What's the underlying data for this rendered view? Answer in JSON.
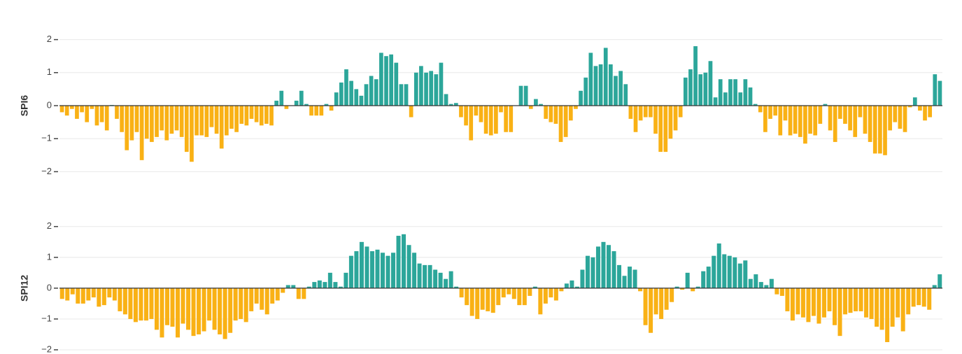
{
  "chart_data": [
    {
      "type": "bar",
      "ylabel": "SPI6",
      "positive_color": "#2ca69a",
      "negative_color": "#f9b115",
      "ylim": [
        -2.5,
        2.5
      ],
      "yticks": [
        {
          "value": -2,
          "label": "−2"
        },
        {
          "value": -1,
          "label": "−1"
        },
        0,
        1,
        2
      ],
      "grid": true,
      "values": [
        -0.2,
        -0.3,
        -0.1,
        -0.4,
        -0.2,
        -0.5,
        -0.1,
        -0.6,
        -0.5,
        -0.75,
        0.02,
        -0.4,
        -0.8,
        -1.35,
        -1.05,
        -0.8,
        -1.65,
        -1.0,
        -1.1,
        -0.95,
        -0.75,
        -1.05,
        -0.85,
        -0.75,
        -0.95,
        -1.4,
        -1.7,
        -0.9,
        -0.9,
        -0.95,
        -0.65,
        -0.85,
        -1.3,
        -0.9,
        -0.7,
        -0.8,
        -0.55,
        -0.6,
        -0.4,
        -0.5,
        -0.6,
        -0.55,
        -0.6,
        0.15,
        0.45,
        -0.1,
        0.0,
        0.15,
        0.45,
        0.05,
        -0.3,
        -0.3,
        -0.3,
        0.05,
        -0.15,
        0.4,
        0.7,
        1.1,
        0.75,
        0.5,
        0.3,
        0.65,
        0.9,
        0.8,
        1.6,
        1.5,
        1.55,
        1.3,
        0.65,
        0.65,
        -0.35,
        1.0,
        1.2,
        1.0,
        1.05,
        0.95,
        1.3,
        0.35,
        0.05,
        0.08,
        -0.35,
        -0.6,
        -1.05,
        -0.3,
        -0.5,
        -0.85,
        -0.9,
        -0.85,
        -0.2,
        -0.8,
        -0.8,
        0.0,
        0.6,
        0.6,
        -0.1,
        0.2,
        0.05,
        -0.4,
        -0.5,
        -0.55,
        -1.1,
        -0.95,
        -0.45,
        -0.1,
        0.45,
        0.85,
        1.6,
        1.2,
        1.25,
        1.75,
        1.25,
        0.9,
        1.05,
        0.65,
        -0.4,
        -0.8,
        -0.45,
        -0.35,
        -0.35,
        -0.85,
        -1.4,
        -1.4,
        -1.0,
        -0.75,
        -0.35,
        0.85,
        1.1,
        1.8,
        0.95,
        1.0,
        1.35,
        0.25,
        0.8,
        0.4,
        0.8,
        0.8,
        0.4,
        0.8,
        0.55,
        0.05,
        -0.2,
        -0.8,
        -0.4,
        -0.3,
        -0.9,
        -0.45,
        -0.9,
        -0.85,
        -0.95,
        -1.15,
        -0.85,
        -0.9,
        -0.55,
        0.05,
        -0.75,
        -1.1,
        -0.4,
        -0.55,
        -0.75,
        -0.95,
        -0.35,
        -0.85,
        -1.1,
        -1.45,
        -1.45,
        -1.5,
        -0.75,
        -0.5,
        -0.7,
        -0.8,
        -0.05,
        0.25,
        -0.15,
        -0.45,
        -0.35,
        0.95,
        0.75
      ]
    },
    {
      "type": "bar",
      "ylabel": "SPI12",
      "positive_color": "#2ca69a",
      "negative_color": "#f9b115",
      "ylim": [
        -2.1,
        2.2
      ],
      "yticks": [
        {
          "value": -2,
          "label": "−2"
        },
        {
          "value": -1,
          "label": "−1"
        },
        0,
        1,
        2
      ],
      "grid": true,
      "values": [
        -0.35,
        -0.4,
        -0.2,
        -0.5,
        -0.5,
        -0.4,
        -0.3,
        -0.6,
        -0.55,
        -0.3,
        -0.4,
        -0.75,
        -0.85,
        -1.0,
        -1.1,
        -1.05,
        -1.05,
        -1.0,
        -1.35,
        -1.6,
        -1.2,
        -1.25,
        -1.6,
        -1.15,
        -1.35,
        -1.55,
        -1.5,
        -1.4,
        -1.05,
        -1.35,
        -1.5,
        -1.65,
        -1.45,
        -1.05,
        -1.0,
        -1.1,
        -0.75,
        -0.5,
        -0.7,
        -0.85,
        -0.5,
        -0.4,
        -0.15,
        0.1,
        0.1,
        -0.35,
        -0.35,
        0.05,
        0.2,
        0.25,
        0.2,
        0.5,
        0.2,
        0.05,
        0.5,
        1.05,
        1.2,
        1.5,
        1.35,
        1.2,
        1.25,
        1.15,
        1.05,
        1.15,
        1.7,
        1.75,
        1.4,
        1.15,
        0.8,
        0.75,
        0.75,
        0.6,
        0.5,
        0.3,
        0.55,
        0.05,
        -0.3,
        -0.55,
        -0.9,
        -1.0,
        -0.7,
        -0.75,
        -0.8,
        -0.55,
        -0.3,
        -0.2,
        -0.35,
        -0.55,
        -0.55,
        -0.25,
        0.05,
        -0.85,
        -0.5,
        -0.3,
        -0.4,
        -0.1,
        0.15,
        0.25,
        0.05,
        0.6,
        1.05,
        1.0,
        1.35,
        1.5,
        1.4,
        1.2,
        0.75,
        0.4,
        0.7,
        0.6,
        -0.1,
        -1.2,
        -1.45,
        -0.85,
        -1.0,
        -0.7,
        -0.45,
        0.05,
        -0.05,
        0.5,
        -0.1,
        0.05,
        0.55,
        0.7,
        1.05,
        1.45,
        1.1,
        1.05,
        1.0,
        0.8,
        0.9,
        0.3,
        0.45,
        0.2,
        0.1,
        0.3,
        -0.2,
        -0.25,
        -0.75,
        -1.05,
        -0.85,
        -0.95,
        -1.1,
        -0.9,
        -1.15,
        -0.95,
        -0.75,
        -1.2,
        -1.55,
        -0.85,
        -0.8,
        -0.75,
        -0.75,
        -0.95,
        -1.0,
        -1.25,
        -1.35,
        -1.75,
        -1.25,
        -0.95,
        -1.4,
        -0.85,
        -0.6,
        -0.55,
        -0.6,
        -0.7,
        0.1,
        0.45
      ]
    }
  ]
}
